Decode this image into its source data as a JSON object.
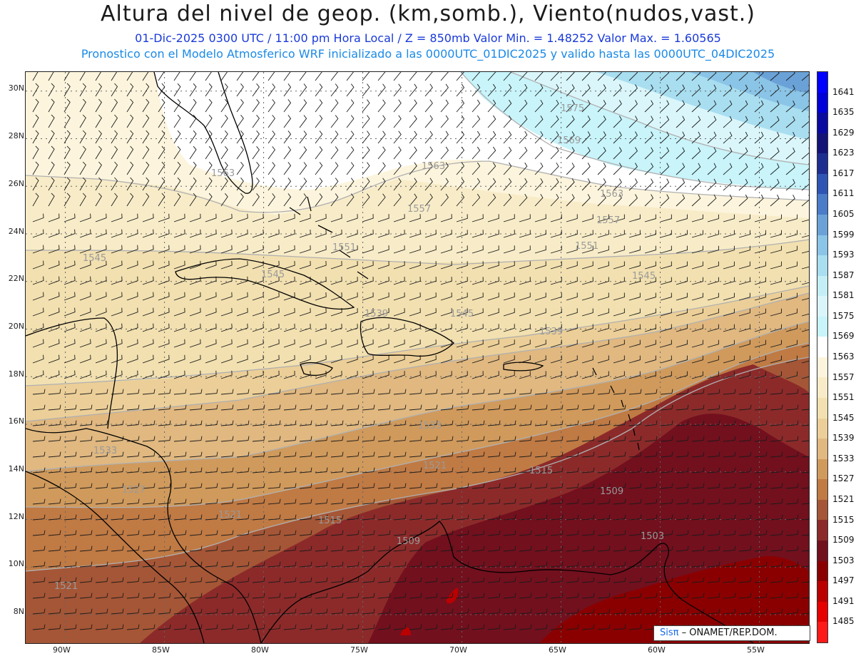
{
  "title": "Altura del nivel de geop. (km,somb.), Viento(nudos,vast.)",
  "subtitle_1": "01-Dic-2025  0300 UTC / 11:00 pm Hora Local / Z = 850mb     Valor Min. = 1.48252   Valor Max. = 1.60565",
  "subtitle_2": "Pronostico con el Modelo Atmosferico WRF inicializado a las 0000UTC_01DIC2025 y valido hasta las  0000UTC_04DIC2025",
  "map": {
    "lon_range": [
      -92,
      -52.5
    ],
    "lat_range": [
      6.8,
      30.8
    ],
    "lat_labels": [
      "30N",
      "28N",
      "26N",
      "24N",
      "22N",
      "20N",
      "18N",
      "16N",
      "14N",
      "12N",
      "10N",
      "8N"
    ],
    "lon_labels": [
      "90W",
      "85W",
      "80W",
      "75W",
      "70W",
      "65W",
      "60W",
      "55W"
    ],
    "contour_labels": [
      "1575",
      "1569",
      "1563",
      "1563",
      "1563",
      "1557",
      "1557",
      "1551",
      "1551",
      "1545",
      "1545",
      "1545",
      "1545",
      "1539",
      "1539",
      "1533",
      "1533",
      "1527",
      "1521",
      "1521",
      "1521",
      "1515",
      "1515",
      "1509",
      "1509",
      "1503"
    ]
  },
  "colorbar": {
    "levels": [
      "1641",
      "1635",
      "1629",
      "1623",
      "1617",
      "1611",
      "1605",
      "1599",
      "1593",
      "1587",
      "1581",
      "1575",
      "1569",
      "1563",
      "1557",
      "1551",
      "1545",
      "1539",
      "1533",
      "1527",
      "1521",
      "1515",
      "1509",
      "1503",
      "1497",
      "1491",
      "1485"
    ],
    "colors": [
      "#0000ff",
      "#0000d8",
      "#0a0aa0",
      "#141478",
      "#1e2e90",
      "#2e54b4",
      "#4a7cc8",
      "#6aa2d8",
      "#8ac4e6",
      "#a8def0",
      "#c4eef6",
      "#daf6fa",
      "#c8f4fa",
      "#ffffff",
      "#fcf4dc",
      "#f8ecc8",
      "#f2e0b0",
      "#eccf98",
      "#e0b880",
      "#d09a5c",
      "#c07a44",
      "#a55636",
      "#8c2a2a",
      "#72101e",
      "#8a0000",
      "#bb0000",
      "#e60000",
      "#ff1a1a"
    ]
  },
  "credit": {
    "brand": "Sisπ",
    "text": " – ONAMET/REP.DOM."
  }
}
